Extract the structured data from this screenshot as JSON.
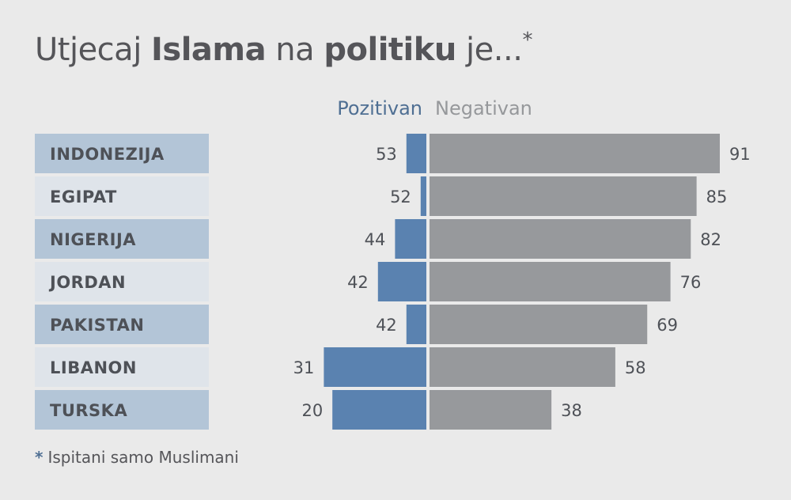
{
  "title": {
    "prefix": "Utjecaj ",
    "bold1": "Islama",
    "middle": " na ",
    "bold2": "politiku",
    "suffix": " je...",
    "star": "*"
  },
  "footnote": {
    "star": "*",
    "text": "Ispitani samo Muslimani"
  },
  "colors": {
    "positive": "#5a82b0",
    "negative": "#97999c",
    "label_dark": "#b3c5d7",
    "label_light": "#dfe4ea"
  },
  "chart_data": {
    "type": "bar",
    "orientation": "horizontal-diverging",
    "categories": [
      "INDONEZIJA",
      "EGIPAT",
      "NIGERIJA",
      "JORDAN",
      "PAKISTAN",
      "LIBANON",
      "TURSKA"
    ],
    "series": [
      {
        "name": "Pozitivan",
        "values": [
          53,
          52,
          44,
          42,
          42,
          31,
          20
        ]
      },
      {
        "name": "Negativan",
        "values": [
          91,
          85,
          82,
          76,
          69,
          58,
          38
        ]
      }
    ],
    "positive_bar_fraction": [
      0.07,
      0.02,
      0.11,
      0.17,
      0.07,
      0.36,
      0.33
    ],
    "negative_bar_fraction": [
      1.0,
      0.92,
      0.9,
      0.83,
      0.75,
      0.64,
      0.42
    ]
  }
}
